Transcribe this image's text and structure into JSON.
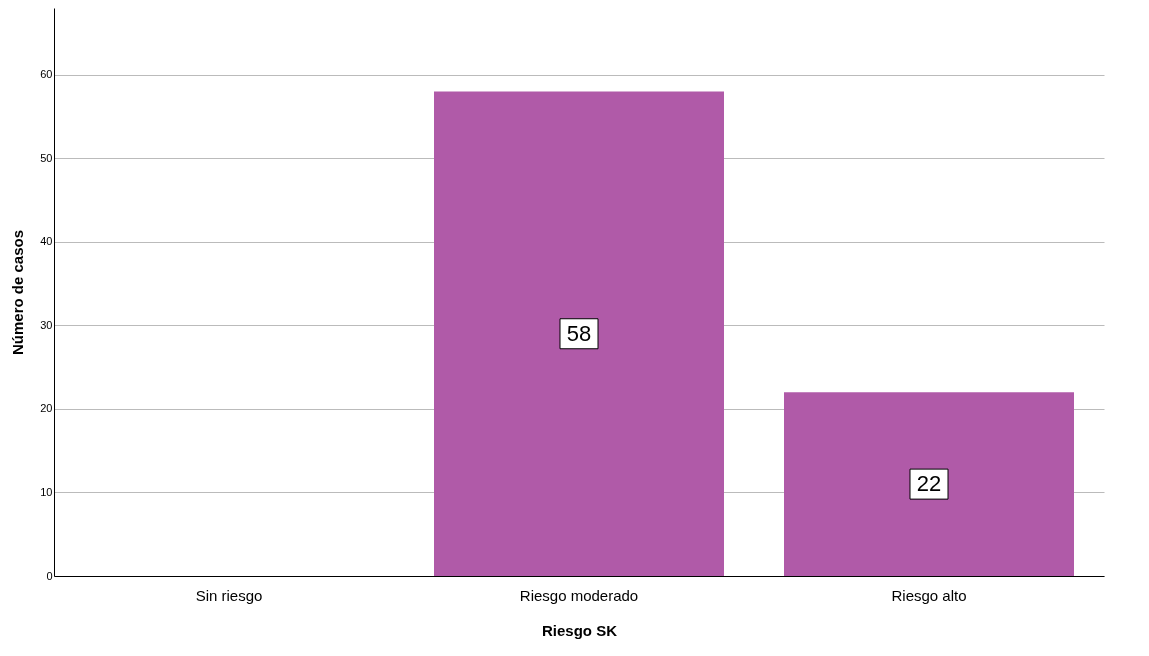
{
  "chart_data": {
    "type": "bar",
    "xlabel": "Riesgo SK",
    "ylabel": "Número de casos",
    "categories": [
      "Sin riesgo",
      "Riesgo moderado",
      "Riesgo alto"
    ],
    "values": [
      0,
      58,
      22
    ],
    "value_labels": [
      null,
      "58",
      "22"
    ],
    "color": "#b05aa8",
    "ylim": [
      0,
      68
    ],
    "yticks": [
      0,
      10,
      20,
      30,
      40,
      50,
      60
    ],
    "grid": "y"
  }
}
